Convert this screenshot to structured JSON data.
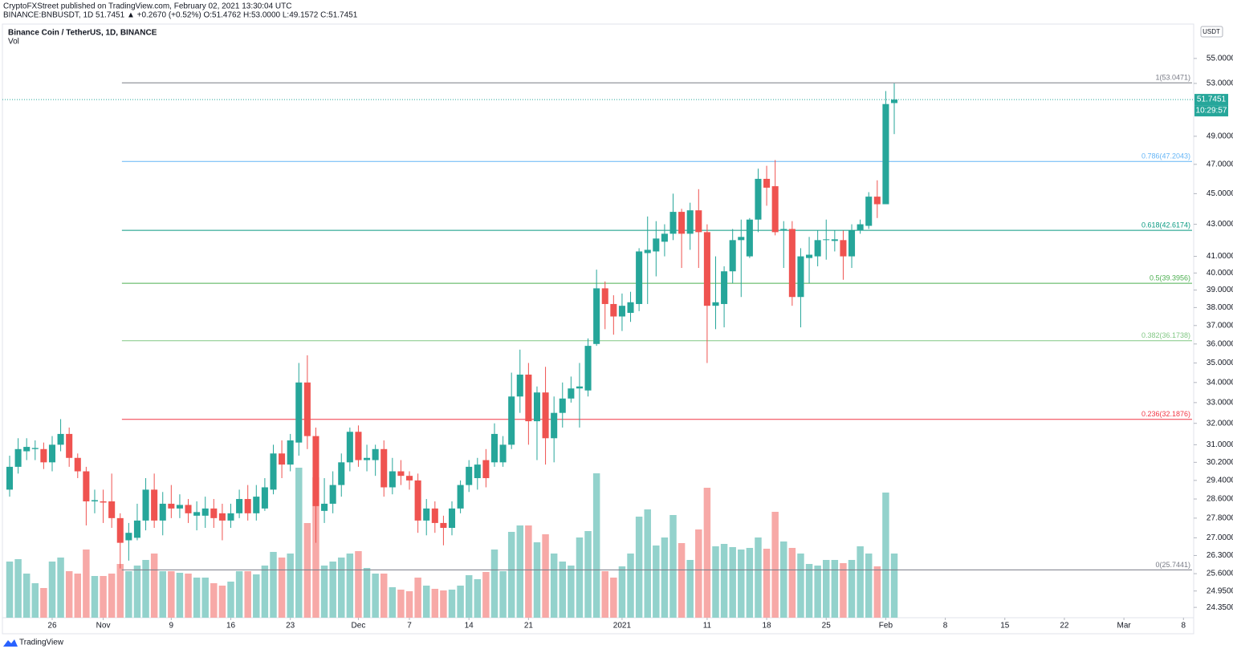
{
  "header": {
    "publisher": "CryptoFXStreet published on TradingView.com, February 02, 2021 13:30:04 UTC",
    "symbol_line": "BINANCE:BNBUSDT, 1D 51.7451 ▲ +0.2670 (+0.52%) O:51.4762 H:53.0000 L:49.1572 C:51.7451"
  },
  "chart_data": {
    "type": "candlestick",
    "title": "Binance Coin / TetherUS, 1D, BINANCE",
    "volume_title": "Vol",
    "currency": "USDT",
    "last_price": 51.7451,
    "countdown": "10:29:57",
    "log_scale": true,
    "up_color": "#26a69a",
    "down_color": "#ef5350",
    "volume_up_color": "#93d2cc",
    "volume_down_color": "#f7a9a7",
    "xlim": [
      -0.85,
      139.2
    ],
    "xticks": [
      {
        "value": 5,
        "label": "26"
      },
      {
        "value": 11,
        "label": "Nov"
      },
      {
        "value": 19,
        "label": "9"
      },
      {
        "value": 26,
        "label": "16"
      },
      {
        "value": 33,
        "label": "23"
      },
      {
        "value": 41,
        "label": "Dec"
      },
      {
        "value": 47,
        "label": "7"
      },
      {
        "value": 54,
        "label": "14"
      },
      {
        "value": 61,
        "label": "21"
      },
      {
        "value": 72,
        "label": "2021"
      },
      {
        "value": 82,
        "label": "11"
      },
      {
        "value": 89,
        "label": "18"
      },
      {
        "value": 96,
        "label": "25"
      },
      {
        "value": 103,
        "label": "Feb"
      },
      {
        "value": 110,
        "label": "8"
      },
      {
        "value": 117,
        "label": "15"
      },
      {
        "value": 124,
        "label": "22"
      },
      {
        "value": 131,
        "label": "Mar"
      },
      {
        "value": 138,
        "label": "8"
      }
    ],
    "ylim": [
      23.98,
      57.88
    ],
    "yticks": [
      {
        "value": 55,
        "label": "55.0000"
      },
      {
        "value": 53,
        "label": "53.0000"
      },
      {
        "value": 49,
        "label": "49.0000"
      },
      {
        "value": 47,
        "label": "47.0000"
      },
      {
        "value": 45,
        "label": "45.0000"
      },
      {
        "value": 43,
        "label": "43.0000"
      },
      {
        "value": 41,
        "label": "41.0000"
      },
      {
        "value": 40,
        "label": "40.0000"
      },
      {
        "value": 39,
        "label": "39.0000"
      },
      {
        "value": 38,
        "label": "38.0000"
      },
      {
        "value": 37,
        "label": "37.0000"
      },
      {
        "value": 36,
        "label": "36.0000"
      },
      {
        "value": 35,
        "label": "35.0000"
      },
      {
        "value": 34,
        "label": "34.0000"
      },
      {
        "value": 33,
        "label": "33.0000"
      },
      {
        "value": 32,
        "label": "32.0000"
      },
      {
        "value": 31,
        "label": "31.0000"
      },
      {
        "value": 30.2,
        "label": "30.2000"
      },
      {
        "value": 29.4,
        "label": "29.4000"
      },
      {
        "value": 28.6,
        "label": "28.6000"
      },
      {
        "value": 27.8,
        "label": "27.8000"
      },
      {
        "value": 27,
        "label": "27.0000"
      },
      {
        "value": 26.3,
        "label": "26.3000"
      },
      {
        "value": 25.6,
        "label": "25.6000"
      },
      {
        "value": 24.95,
        "label": "24.9500"
      },
      {
        "value": 24.35,
        "label": "24.3500"
      }
    ],
    "vlim": [
      0,
      740
    ],
    "fib_levels": [
      {
        "label": "1(53.0471)",
        "value": 53.0471,
        "color": "#787b86"
      },
      {
        "label": "0.786(47.2043)",
        "value": 47.2043,
        "color": "#64b5f6"
      },
      {
        "label": "0.618(42.6174)",
        "value": 42.6174,
        "color": "#089981"
      },
      {
        "label": "0.5(39.3956)",
        "value": 39.3956,
        "color": "#4caf50"
      },
      {
        "label": "0.382(36.1738)",
        "value": 36.1738,
        "color": "#81c784"
      },
      {
        "label": "0.236(32.1876)",
        "value": 32.1876,
        "color": "#f23645"
      },
      {
        "label": "0(25.7441)",
        "value": 25.7441,
        "color": "#787b86"
      }
    ],
    "open": [
      29.0,
      30.0,
      30.7,
      30.8,
      30.8,
      30.2,
      31.0,
      31.5,
      30.4,
      29.8,
      28.5,
      28.5,
      28.5,
      27.8,
      26.9,
      27.0,
      27.7,
      29.0,
      27.7,
      28.4,
      28.2,
      28.35,
      27.9,
      27.9,
      28.2,
      28.0,
      27.7,
      28.0,
      28.6,
      28.0,
      28.2,
      29.0,
      30.6,
      30.1,
      31.1,
      34.0,
      31.4,
      28.1,
      28.4,
      29.2,
      30.2,
      31.6,
      30.3,
      30.3,
      30.8,
      29.1,
      29.8,
      29.6,
      29.4,
      27.7,
      28.2,
      27.6,
      27.4,
      28.2,
      29.2,
      29.5,
      30.3,
      30.2,
      30.2,
      31.0,
      33.3,
      34.4,
      32.1,
      33.5,
      31.3,
      32.5,
      33.2,
      33.7,
      33.6,
      36.0,
      39.1,
      38.2,
      37.5,
      37.7,
      38.2,
      41.2,
      41.3,
      41.9,
      42.4,
      43.8,
      42.4,
      43.9,
      42.5,
      38.1,
      38.2,
      40.1,
      42.0,
      41.0,
      43.3,
      46.0,
      45.5,
      42.6,
      42.7,
      38.6,
      40.9,
      41.0,
      42.0,
      41.95,
      42.0,
      41.0,
      42.6,
      42.9,
      44.8,
      44.3,
      51.4762
    ],
    "high": [
      30.5,
      31.3,
      31.3,
      31.2,
      31.1,
      31.4,
      32.2,
      31.8,
      30.6,
      30.0,
      29.0,
      29.0,
      29.7,
      28.0,
      27.6,
      28.4,
      29.5,
      29.7,
      28.9,
      29.2,
      28.8,
      28.6,
      28.5,
      28.7,
      28.6,
      28.4,
      28.4,
      29.0,
      29.2,
      29.2,
      29.5,
      31.0,
      31.2,
      31.5,
      35.0,
      35.4,
      31.8,
      29.5,
      29.8,
      30.6,
      31.8,
      31.9,
      31.0,
      31.0,
      31.2,
      30.4,
      30.3,
      29.8,
      29.7,
      28.6,
      28.5,
      27.9,
      28.5,
      29.4,
      30.3,
      30.4,
      30.8,
      32.0,
      31.4,
      34.5,
      35.7,
      35.0,
      33.8,
      34.8,
      33.3,
      34.0,
      34.3,
      35.0,
      36.3,
      40.2,
      39.5,
      38.7,
      38.8,
      38.9,
      41.5,
      43.5,
      43.2,
      43.0,
      45.0,
      44.0,
      44.4,
      45.3,
      43.0,
      41.0,
      40.4,
      42.7,
      43.3,
      43.4,
      46.7,
      46.9,
      47.3,
      43.2,
      43.2,
      41.5,
      42.2,
      42.6,
      43.3,
      42.6,
      42.6,
      43.0,
      43.3,
      45.1,
      45.9,
      52.4,
      53.0
    ],
    "low": [
      28.7,
      29.7,
      30.3,
      30.3,
      29.9,
      29.8,
      30.7,
      30.0,
      29.5,
      27.5,
      28.0,
      27.6,
      27.4,
      25.8,
      26.1,
      26.9,
      27.3,
      27.4,
      27.1,
      27.8,
      27.8,
      27.6,
      27.3,
      27.4,
      27.4,
      26.9,
      27.4,
      27.8,
      27.7,
      27.7,
      28.1,
      28.8,
      29.5,
      29.8,
      30.5,
      30.8,
      26.8,
      27.6,
      28.0,
      28.7,
      29.8,
      30.0,
      29.8,
      29.6,
      28.7,
      28.8,
      29.2,
      29.0,
      27.2,
      27.1,
      27.2,
      26.7,
      27.1,
      28.0,
      28.9,
      29.0,
      29.1,
      30.0,
      30.0,
      30.8,
      32.5,
      31.0,
      30.3,
      30.1,
      30.2,
      31.8,
      33.0,
      31.8,
      33.3,
      35.9,
      36.8,
      36.5,
      36.7,
      37.2,
      37.8,
      38.2,
      39.8,
      41.0,
      42.0,
      40.3,
      41.4,
      40.3,
      35.0,
      36.8,
      36.9,
      39.4,
      38.6,
      40.9,
      42.5,
      44.2,
      42.3,
      40.3,
      38.1,
      36.9,
      39.4,
      40.4,
      40.8,
      41.3,
      39.6,
      40.3,
      42.4,
      42.7,
      43.4,
      44.3,
      49.1572
    ],
    "close": [
      30.0,
      30.8,
      30.9,
      30.85,
      30.2,
      31.0,
      31.5,
      30.4,
      29.8,
      28.5,
      28.55,
      28.45,
      27.8,
      26.8,
      27.2,
      27.7,
      29.0,
      27.7,
      28.4,
      28.2,
      28.35,
      28.0,
      28.05,
      28.2,
      27.8,
      27.7,
      28.0,
      28.6,
      28.0,
      28.7,
      29.1,
      30.6,
      30.1,
      31.2,
      34.0,
      31.4,
      28.3,
      28.4,
      29.2,
      30.2,
      31.6,
      30.3,
      30.4,
      30.8,
      29.1,
      29.8,
      29.6,
      29.4,
      27.7,
      28.2,
      27.6,
      27.4,
      28.2,
      29.2,
      30.0,
      30.1,
      29.5,
      31.5,
      31.0,
      33.3,
      34.4,
      32.1,
      33.5,
      31.3,
      32.5,
      33.2,
      33.7,
      33.8,
      35.9,
      39.1,
      38.2,
      37.5,
      38.1,
      38.3,
      41.3,
      41.4,
      42.1,
      42.4,
      43.8,
      42.4,
      43.9,
      42.5,
      38.1,
      38.3,
      40.1,
      42.0,
      42.2,
      43.3,
      46.0,
      45.4,
      42.5,
      42.7,
      38.6,
      41.0,
      41.1,
      42.0,
      42.05,
      42.05,
      41.0,
      42.6,
      43.0,
      44.8,
      44.3,
      51.4,
      51.7451
    ],
    "volume": [
      70,
      73,
      55,
      43,
      37,
      70,
      75,
      58,
      55,
      85,
      52,
      52,
      55,
      67,
      58,
      65,
      72,
      80,
      58,
      58,
      56,
      55,
      50,
      50,
      43,
      40,
      45,
      58,
      58,
      54,
      65,
      82,
      75,
      80,
      187,
      118,
      175,
      65,
      70,
      75,
      80,
      83,
      62,
      55,
      55,
      38,
      35,
      33,
      50,
      40,
      36,
      34,
      35,
      40,
      53,
      48,
      57,
      85,
      58,
      107,
      115,
      115,
      94,
      104,
      80,
      70,
      65,
      100,
      108,
      180,
      58,
      50,
      64,
      80,
      126,
      135,
      90,
      100,
      128,
      93,
      72,
      110,
      162,
      89,
      92,
      88,
      85,
      87,
      100,
      86,
      132,
      95,
      87,
      80,
      67,
      65,
      72,
      72,
      68,
      72,
      89,
      80,
      64,
      156,
      80
    ]
  },
  "footer": {
    "brand": "TradingView"
  }
}
